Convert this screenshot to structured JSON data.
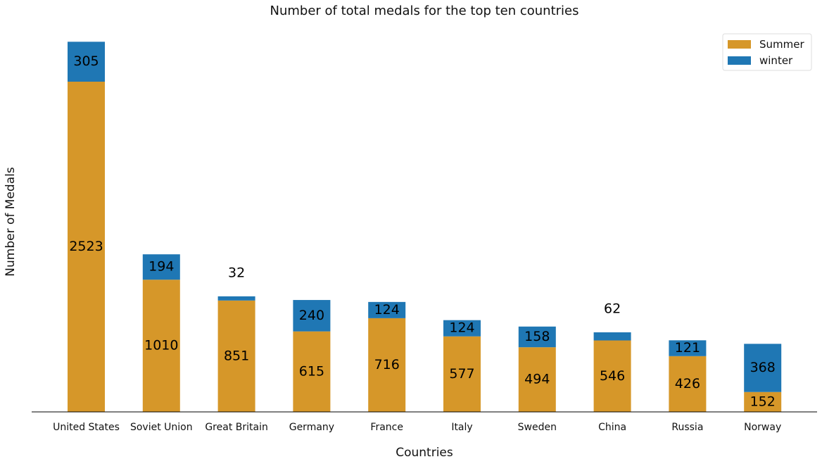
{
  "chart_data": {
    "type": "bar",
    "stacked": true,
    "title": "Number of total medals for the top ten countries",
    "xlabel": "Countries",
    "ylabel": "Number of Medals",
    "ylim": [
      0,
      2948
    ],
    "grid": false,
    "legend_position": "top-right",
    "categories": [
      "United States",
      "Soviet Union",
      "Great Britain",
      "Germany",
      "France",
      "Italy",
      "Sweden",
      "China",
      "Russia",
      "Norway"
    ],
    "series": [
      {
        "name": "Summer",
        "color": "#D69729",
        "values": [
          2523,
          1010,
          851,
          615,
          716,
          577,
          494,
          546,
          426,
          152
        ]
      },
      {
        "name": "winter",
        "color": "#1F77B4",
        "values": [
          305,
          194,
          32,
          240,
          124,
          124,
          158,
          62,
          121,
          368
        ]
      }
    ]
  }
}
